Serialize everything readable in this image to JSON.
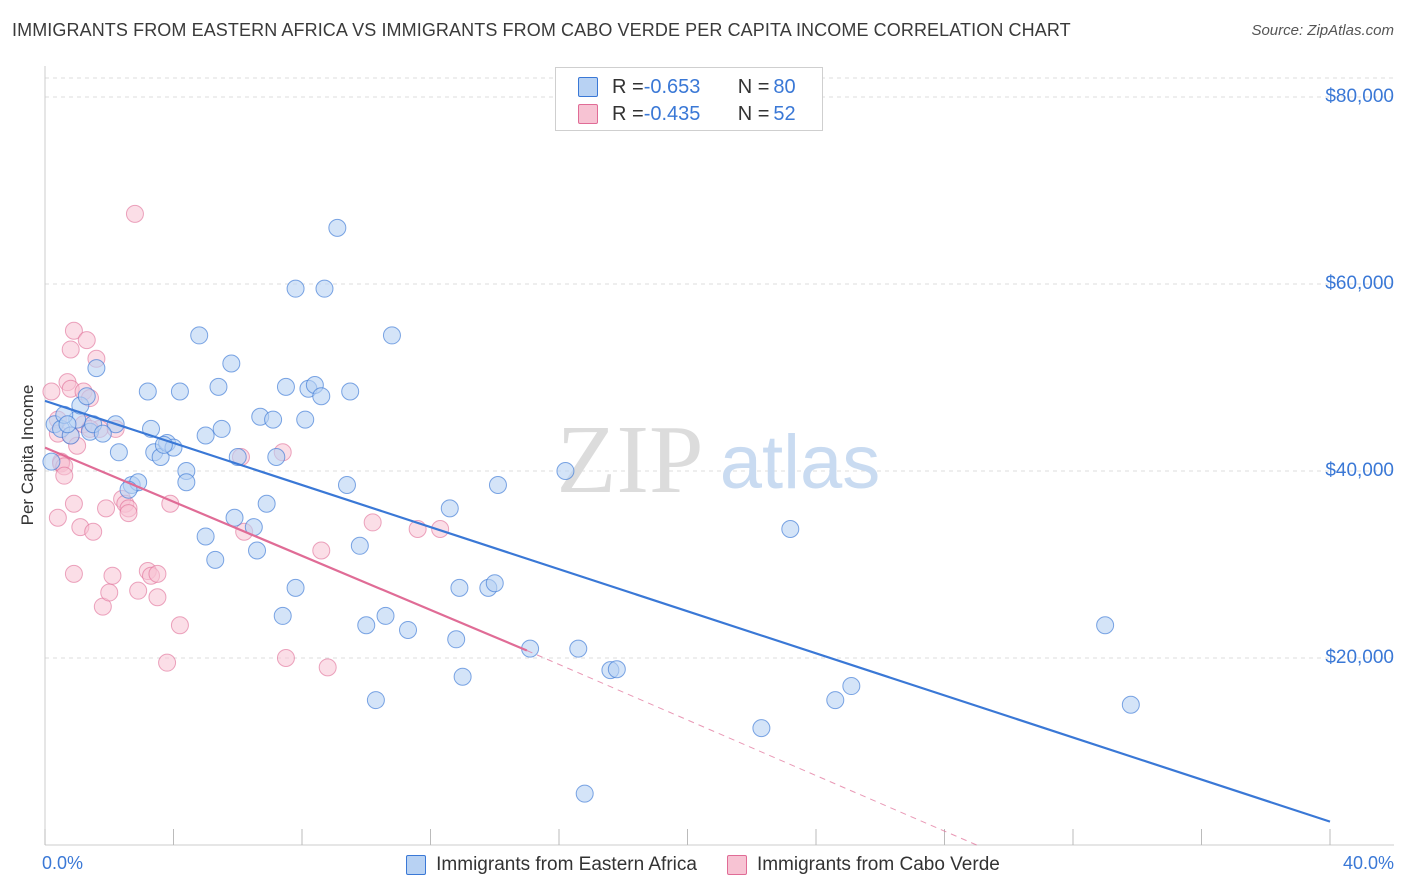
{
  "title": "IMMIGRANTS FROM EASTERN AFRICA VS IMMIGRANTS FROM CABO VERDE PER CAPITA INCOME CORRELATION CHART",
  "source": "Source: ZipAtlas.com",
  "watermark": {
    "zip": "ZIP",
    "atlas": "atlas"
  },
  "colors": {
    "blue": "#3a78d6",
    "blue_fill": "#b8d2f3",
    "pink": "#e06c96",
    "pink_fill": "#f7c3d3"
  },
  "legend": {
    "rows": [
      {
        "r_label": "R = ",
        "r_value": "-0.653",
        "n_label": "N = ",
        "n_value": "80"
      },
      {
        "r_label": "R = ",
        "r_value": "-0.435",
        "n_label": "N = ",
        "n_value": "52"
      }
    ]
  },
  "chart_data": {
    "type": "scatter",
    "title": "IMMIGRANTS FROM EASTERN AFRICA VS IMMIGRANTS FROM CABO VERDE PER CAPITA INCOME CORRELATION CHART",
    "xlabel": "",
    "ylabel": "Per Capita Income",
    "xlim": [
      0,
      40
    ],
    "ylim": [
      0,
      80000
    ],
    "x_tick_labels": [
      "0.0%",
      "40.0%"
    ],
    "y_ticks": [
      20000,
      40000,
      60000,
      80000
    ],
    "y_tick_labels": [
      "$20,000",
      "$40,000",
      "$60,000",
      "$80,000"
    ],
    "grid": true,
    "series": [
      {
        "name": "Immigrants from Eastern Africa",
        "color": "#3a78d6",
        "r": -0.653,
        "n": 80,
        "trend": {
          "x0": 0,
          "y0": 47500,
          "x1": 40,
          "y1": 2500
        },
        "points": [
          [
            0.3,
            45000
          ],
          [
            0.5,
            44500
          ],
          [
            0.8,
            43800
          ],
          [
            1.0,
            45500
          ],
          [
            0.6,
            46000
          ],
          [
            1.1,
            47000
          ],
          [
            1.4,
            44200
          ],
          [
            1.5,
            45000
          ],
          [
            1.3,
            48000
          ],
          [
            1.6,
            51000
          ],
          [
            2.2,
            45000
          ],
          [
            2.3,
            42000
          ],
          [
            2.7,
            38500
          ],
          [
            2.9,
            38800
          ],
          [
            3.2,
            48500
          ],
          [
            3.3,
            44500
          ],
          [
            3.4,
            42000
          ],
          [
            3.6,
            41500
          ],
          [
            3.8,
            43000
          ],
          [
            4.0,
            42500
          ],
          [
            4.2,
            48500
          ],
          [
            4.4,
            40000
          ],
          [
            4.4,
            38800
          ],
          [
            4.8,
            54500
          ],
          [
            5.0,
            43800
          ],
          [
            5.0,
            33000
          ],
          [
            5.3,
            30500
          ],
          [
            5.4,
            49000
          ],
          [
            5.5,
            44500
          ],
          [
            5.8,
            51500
          ],
          [
            5.9,
            35000
          ],
          [
            6.0,
            41500
          ],
          [
            6.5,
            34000
          ],
          [
            6.6,
            31500
          ],
          [
            6.7,
            45800
          ],
          [
            6.9,
            36500
          ],
          [
            7.1,
            45500
          ],
          [
            7.2,
            41500
          ],
          [
            7.4,
            24500
          ],
          [
            7.5,
            49000
          ],
          [
            7.8,
            27500
          ],
          [
            7.8,
            59500
          ],
          [
            8.1,
            45500
          ],
          [
            8.2,
            48800
          ],
          [
            8.4,
            49200
          ],
          [
            8.6,
            48000
          ],
          [
            8.7,
            59500
          ],
          [
            9.1,
            66000
          ],
          [
            9.4,
            38500
          ],
          [
            9.5,
            48500
          ],
          [
            9.8,
            32000
          ],
          [
            10.0,
            23500
          ],
          [
            10.3,
            15500
          ],
          [
            10.6,
            24500
          ],
          [
            10.8,
            54500
          ],
          [
            11.3,
            23000
          ],
          [
            12.6,
            36000
          ],
          [
            12.8,
            22000
          ],
          [
            12.9,
            27500
          ],
          [
            13.0,
            18000
          ],
          [
            13.8,
            27500
          ],
          [
            14.0,
            28000
          ],
          [
            14.1,
            38500
          ],
          [
            15.1,
            21000
          ],
          [
            16.2,
            40000
          ],
          [
            16.6,
            21000
          ],
          [
            16.8,
            5500
          ],
          [
            17.6,
            18700
          ],
          [
            17.8,
            18800
          ],
          [
            22.3,
            12500
          ],
          [
            23.2,
            33800
          ],
          [
            24.6,
            15500
          ],
          [
            25.1,
            17000
          ],
          [
            33.0,
            23500
          ],
          [
            33.8,
            15000
          ],
          [
            0.2,
            41000
          ],
          [
            0.7,
            45000
          ],
          [
            1.8,
            44000
          ],
          [
            2.6,
            38000
          ],
          [
            3.7,
            42800
          ]
        ]
      },
      {
        "name": "Immigrants from Cabo Verde",
        "color": "#e06c96",
        "r": -0.435,
        "n": 52,
        "trend": {
          "x0": 0,
          "y0": 42500,
          "x1": 15.0,
          "y1": 20800
        },
        "trend_dashed_extension": {
          "x0": 15.0,
          "y0": 20800,
          "x1": 29.0,
          "y1": 0
        },
        "points": [
          [
            0.2,
            48500
          ],
          [
            0.4,
            45500
          ],
          [
            0.4,
            44000
          ],
          [
            0.5,
            41000
          ],
          [
            0.5,
            40800
          ],
          [
            0.6,
            40500
          ],
          [
            0.4,
            35000
          ],
          [
            0.6,
            39500
          ],
          [
            0.7,
            49500
          ],
          [
            0.8,
            48800
          ],
          [
            0.8,
            43800
          ],
          [
            0.8,
            53000
          ],
          [
            0.9,
            55000
          ],
          [
            0.9,
            36500
          ],
          [
            0.9,
            29000
          ],
          [
            1.0,
            42700
          ],
          [
            1.1,
            34000
          ],
          [
            1.2,
            48500
          ],
          [
            1.2,
            45000
          ],
          [
            1.3,
            54000
          ],
          [
            1.4,
            47800
          ],
          [
            1.5,
            33500
          ],
          [
            1.6,
            52000
          ],
          [
            1.7,
            44500
          ],
          [
            1.8,
            25500
          ],
          [
            1.9,
            36000
          ],
          [
            2.0,
            27000
          ],
          [
            2.1,
            28800
          ],
          [
            2.2,
            44500
          ],
          [
            2.4,
            37000
          ],
          [
            2.5,
            36500
          ],
          [
            2.6,
            36000
          ],
          [
            2.6,
            35500
          ],
          [
            2.8,
            67500
          ],
          [
            2.9,
            27200
          ],
          [
            3.2,
            29300
          ],
          [
            3.3,
            28800
          ],
          [
            3.5,
            26500
          ],
          [
            3.5,
            29000
          ],
          [
            3.8,
            19500
          ],
          [
            3.9,
            36500
          ],
          [
            4.2,
            23500
          ],
          [
            6.1,
            41500
          ],
          [
            6.2,
            33500
          ],
          [
            7.4,
            42000
          ],
          [
            7.5,
            20000
          ],
          [
            8.6,
            31500
          ],
          [
            8.8,
            19000
          ],
          [
            10.2,
            34500
          ],
          [
            11.6,
            33800
          ],
          [
            12.3,
            33800
          ],
          [
            1.4,
            44500
          ]
        ]
      }
    ]
  },
  "bottom_legend": [
    {
      "label": "Immigrants from Eastern Africa"
    },
    {
      "label": "Immigrants from Cabo Verde"
    }
  ]
}
